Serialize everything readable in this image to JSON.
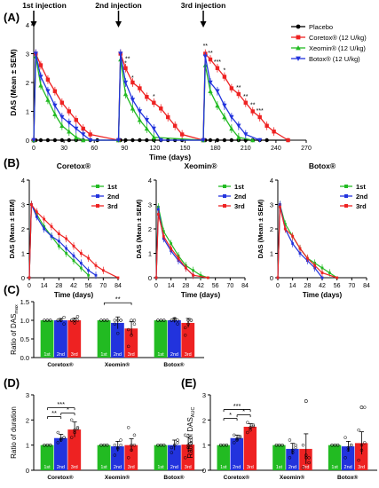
{
  "chart_data": [
    {
      "panel": "(A)",
      "type": "line",
      "xlabel": "Time (days)",
      "ylabel": "DAS (Mean ± SEM)",
      "xlim": [
        0,
        270
      ],
      "ylim": [
        0,
        4
      ],
      "xticks": [
        0,
        30,
        60,
        90,
        120,
        150,
        180,
        210,
        240,
        270
      ],
      "yticks": [
        0,
        1,
        2,
        3,
        4
      ],
      "injections": [
        {
          "label": "1st injection",
          "day": 0
        },
        {
          "label": "2nd injection",
          "day": 84
        },
        {
          "label": "3rd injection",
          "day": 168
        }
      ],
      "legend": [
        {
          "name": "Placebo",
          "color": "#000000",
          "marker": "circle"
        },
        {
          "name": "Coretox® (12 U/kg)",
          "color": "#ee2222",
          "marker": "square"
        },
        {
          "name": "Xeomin® (12 U/kg)",
          "color": "#22bb22",
          "marker": "triangle"
        },
        {
          "name": "Botox® (12 U/kg)",
          "color": "#2233dd",
          "marker": "triangle-down"
        }
      ],
      "series": [
        {
          "name": "Placebo",
          "color": "#000000",
          "marker": "circle",
          "x": [
            0,
            2,
            7,
            14,
            21,
            28,
            35,
            42,
            49,
            56,
            63,
            84,
            86,
            91,
            98,
            105,
            112,
            119,
            126,
            133,
            140,
            147,
            168,
            170,
            175,
            182,
            189,
            196,
            203,
            210,
            217,
            224,
            231,
            252
          ],
          "y": [
            0,
            0,
            0,
            0,
            0,
            0,
            0,
            0,
            0,
            0,
            0,
            0,
            0,
            0,
            0,
            0,
            0,
            0,
            0,
            0,
            0,
            0,
            0,
            0,
            0,
            0,
            0,
            0,
            0,
            0,
            0,
            0,
            0,
            0
          ]
        },
        {
          "name": "Coretox® (12 U/kg)",
          "color": "#ee2222",
          "marker": "square",
          "x": [
            0,
            2,
            7,
            14,
            21,
            28,
            35,
            42,
            49,
            56,
            84,
            86,
            91,
            98,
            105,
            112,
            119,
            126,
            133,
            140,
            147,
            168,
            170,
            175,
            182,
            189,
            196,
            203,
            210,
            217,
            224,
            231,
            238,
            252
          ],
          "y": [
            0,
            3.0,
            2.6,
            2.1,
            1.7,
            1.3,
            1.0,
            0.7,
            0.4,
            0.2,
            0,
            3.0,
            2.5,
            2.0,
            1.8,
            1.5,
            1.3,
            1.1,
            0.8,
            0.5,
            0.2,
            0,
            3.0,
            2.8,
            2.5,
            2.2,
            1.8,
            1.6,
            1.3,
            1.0,
            0.8,
            0.5,
            0.3,
            0
          ]
        },
        {
          "name": "Xeomin® (12 U/kg)",
          "color": "#22bb22",
          "marker": "triangle",
          "x": [
            0,
            2,
            7,
            14,
            21,
            28,
            35,
            42,
            49,
            84,
            86,
            91,
            98,
            105,
            112,
            119,
            168,
            170,
            175,
            182,
            189,
            196,
            203,
            217
          ],
          "y": [
            0,
            2.9,
            1.9,
            1.4,
            0.9,
            0.5,
            0.3,
            0.1,
            0,
            0,
            2.8,
            1.6,
            1.1,
            0.7,
            0.4,
            0.1,
            0,
            2.6,
            1.7,
            1.2,
            0.8,
            0.4,
            0.1,
            0
          ]
        },
        {
          "name": "Botox® (12 U/kg)",
          "color": "#2233dd",
          "marker": "triangle-down",
          "x": [
            0,
            2,
            7,
            14,
            21,
            28,
            35,
            42,
            49,
            56,
            84,
            86,
            91,
            98,
            105,
            112,
            119,
            126,
            168,
            170,
            175,
            182,
            189,
            196,
            203,
            210,
            224
          ],
          "y": [
            0,
            3.0,
            2.2,
            1.7,
            1.2,
            0.8,
            0.6,
            0.4,
            0.2,
            0,
            0,
            3.0,
            2.0,
            1.4,
            1.0,
            0.7,
            0.4,
            0,
            0,
            2.9,
            2.0,
            1.7,
            1.2,
            0.8,
            0.5,
            0.2,
            0
          ]
        }
      ],
      "annotations": [
        {
          "text": "*",
          "x": 91,
          "y": 2.6
        },
        {
          "text": "**",
          "x": 93,
          "y": 2.75
        },
        {
          "text": "*",
          "x": 98,
          "y": 2.1
        },
        {
          "text": "*",
          "x": 119,
          "y": 1.45
        },
        {
          "text": "**",
          "x": 170,
          "y": 3.2
        },
        {
          "text": "**",
          "x": 175,
          "y": 2.95
        },
        {
          "text": "***",
          "x": 182,
          "y": 2.65
        },
        {
          "text": "*",
          "x": 189,
          "y": 2.35
        },
        {
          "text": "**",
          "x": 203,
          "y": 1.75
        },
        {
          "text": "**",
          "x": 210,
          "y": 1.45
        },
        {
          "text": "**",
          "x": 217,
          "y": 1.15
        },
        {
          "text": "***",
          "x": 224,
          "y": 0.95
        }
      ]
    },
    {
      "panel": "(B)",
      "type": "line",
      "xlabel": "Time (days)",
      "ylabel": "DAS (Mean ± SEM)",
      "xlim": [
        0,
        84
      ],
      "ylim": [
        0,
        4
      ],
      "xticks": [
        0,
        14,
        28,
        42,
        56,
        70,
        84
      ],
      "yticks": [
        0,
        1,
        2,
        3,
        4
      ],
      "legend": [
        {
          "name": "1st",
          "color": "#22bb22"
        },
        {
          "name": "2nd",
          "color": "#2233dd"
        },
        {
          "name": "3rd",
          "color": "#ee2222"
        }
      ],
      "subplots": [
        {
          "title": "Coretox®",
          "series": [
            {
              "name": "1st",
              "x": [
                0,
                2,
                7,
                14,
                21,
                28,
                35,
                42,
                49,
                56
              ],
              "y": [
                0,
                3.0,
                2.6,
                2.1,
                1.7,
                1.3,
                1.0,
                0.7,
                0.4,
                0.1
              ]
            },
            {
              "name": "2nd",
              "x": [
                0,
                2,
                7,
                14,
                21,
                28,
                35,
                42,
                49,
                56,
                63
              ],
              "y": [
                0,
                3.0,
                2.5,
                2.0,
                1.7,
                1.5,
                1.2,
                0.9,
                0.6,
                0.3,
                0.1
              ]
            },
            {
              "name": "3rd",
              "x": [
                0,
                2,
                7,
                14,
                21,
                28,
                35,
                42,
                49,
                56,
                63,
                70,
                84
              ],
              "y": [
                0,
                3.0,
                2.7,
                2.4,
                2.1,
                1.8,
                1.6,
                1.3,
                1.0,
                0.8,
                0.5,
                0.3,
                0
              ]
            }
          ]
        },
        {
          "title": "Xeomin®",
          "series": [
            {
              "name": "1st",
              "x": [
                0,
                2,
                7,
                14,
                21,
                28,
                35,
                42,
                49
              ],
              "y": [
                0,
                2.9,
                1.9,
                1.4,
                0.9,
                0.5,
                0.3,
                0.1,
                0
              ]
            },
            {
              "name": "2nd",
              "x": [
                0,
                2,
                7,
                14,
                21,
                28,
                35
              ],
              "y": [
                0,
                2.8,
                1.6,
                1.1,
                0.7,
                0.4,
                0.1
              ]
            },
            {
              "name": "3rd",
              "x": [
                0,
                2,
                7,
                14,
                21,
                28,
                35,
                49
              ],
              "y": [
                0,
                2.6,
                1.7,
                1.2,
                0.8,
                0.4,
                0.1,
                0
              ]
            }
          ]
        },
        {
          "title": "Botox®",
          "series": [
            {
              "name": "1st",
              "x": [
                0,
                2,
                7,
                14,
                21,
                28,
                35,
                42,
                49,
                56
              ],
              "y": [
                0,
                3.0,
                2.2,
                1.7,
                1.2,
                0.8,
                0.6,
                0.4,
                0.2,
                0
              ]
            },
            {
              "name": "2nd",
              "x": [
                0,
                2,
                7,
                14,
                21,
                28,
                35,
                42
              ],
              "y": [
                0,
                3.0,
                2.0,
                1.4,
                1.0,
                0.7,
                0.4,
                0
              ]
            },
            {
              "name": "3rd",
              "x": [
                0,
                2,
                7,
                14,
                21,
                28,
                35,
                42,
                56
              ],
              "y": [
                0,
                2.9,
                2.0,
                1.7,
                1.2,
                0.8,
                0.5,
                0.2,
                0
              ]
            }
          ]
        }
      ]
    },
    {
      "panel": "(C)",
      "type": "bar",
      "ylabel": "Ratio of DAS",
      "ylabel_sub": "max",
      "ylim": [
        0,
        1.5
      ],
      "yticks": [
        "0.0",
        "0.5",
        "1.0",
        "1.5"
      ],
      "groups": [
        "Coretox®",
        "Xeomin®",
        "Botox®"
      ],
      "bar_labels": [
        "1st",
        "2nd",
        "3rd"
      ],
      "colors": [
        "#22bb22",
        "#2233dd",
        "#ee2222"
      ],
      "values": [
        [
          1.0,
          1.0,
          1.0
        ],
        [
          1.0,
          0.93,
          0.78
        ],
        [
          1.0,
          1.0,
          0.93
        ]
      ],
      "errors": [
        [
          0,
          0.05,
          0.06
        ],
        [
          0,
          0.16,
          0.18
        ],
        [
          0,
          0.06,
          0.12
        ]
      ],
      "points": [
        [
          [
            1.0,
            1.0,
            1.0,
            1.0,
            1.0,
            1.0
          ],
          [
            1.0,
            1.0,
            0.9,
            1.0,
            1.0,
            1.08
          ],
          [
            1.0,
            0.93,
            1.0,
            1.0,
            1.0,
            1.1
          ]
        ],
        [
          [
            1.0,
            1.0,
            1.0,
            1.0,
            1.0,
            1.0
          ],
          [
            1.0,
            0.65,
            1.0,
            0.9,
            1.0,
            1.0
          ],
          [
            0.3,
            0.6,
            1.0,
            0.75,
            1.0,
            0.9
          ]
        ],
        [
          [
            1.0,
            1.0,
            1.0,
            1.0,
            1.0,
            1.0
          ],
          [
            1.0,
            1.0,
            0.9,
            1.0,
            1.05,
            1.0
          ],
          [
            0.8,
            0.9,
            1.0,
            0.6,
            1.0,
            1.0
          ]
        ]
      ],
      "significance": [
        {
          "group": 1,
          "from": 0,
          "to": 2,
          "label": "**"
        }
      ]
    },
    {
      "panel": "(D)",
      "type": "bar",
      "ylabel": "Ratio of duration",
      "ylim": [
        0,
        3
      ],
      "yticks": [
        "0",
        "1",
        "2",
        "3"
      ],
      "groups": [
        "Coretox®",
        "Xeomin®",
        "Botox®"
      ],
      "bar_labels": [
        "1st",
        "2nd",
        "3rd"
      ],
      "colors": [
        "#22bb22",
        "#2233dd",
        "#ee2222"
      ],
      "values": [
        [
          1.0,
          1.28,
          1.62
        ],
        [
          1.0,
          0.95,
          1.0
        ],
        [
          1.0,
          1.0,
          1.02
        ]
      ],
      "errors": [
        [
          0,
          0.15,
          0.3
        ],
        [
          0,
          0.2,
          0.25
        ],
        [
          0,
          0.2,
          0.3
        ]
      ],
      "points": [
        [
          [
            1.0,
            1.0,
            1.0,
            1.0,
            1.0,
            1.0
          ],
          [
            1.1,
            1.2,
            1.3,
            1.5,
            1.25,
            1.3
          ],
          [
            1.3,
            1.5,
            1.7,
            2.0,
            1.6,
            1.65
          ]
        ],
        [
          [
            1.0,
            1.0,
            1.0,
            1.0,
            1.0,
            1.0
          ],
          [
            0.6,
            0.9,
            1.2,
            1.0,
            0.85,
            1.0
          ],
          [
            0.5,
            1.0,
            1.4,
            1.7,
            0.8,
            1.0
          ]
        ],
        [
          [
            1.0,
            1.0,
            1.0,
            1.0,
            1.0,
            1.0
          ],
          [
            0.7,
            1.0,
            1.2,
            0.9,
            1.0,
            1.1
          ],
          [
            0.5,
            0.9,
            1.2,
            1.4,
            1.0,
            1.1
          ]
        ]
      ],
      "significance": [
        {
          "group": 0,
          "from": 0,
          "to": 2,
          "label": "***"
        },
        {
          "group": 0,
          "from": 0,
          "to": 1,
          "label": "**"
        },
        {
          "group": 0,
          "from": 1,
          "to": 2,
          "label": "*"
        }
      ]
    },
    {
      "panel": "(E)",
      "type": "bar",
      "ylabel": "Ratio of DAS",
      "ylabel_sub": "AUC",
      "ylim": [
        0,
        3
      ],
      "yticks": [
        "0",
        "1",
        "2",
        "3"
      ],
      "groups": [
        "Coretox®",
        "Xeomin®",
        "Botox®"
      ],
      "bar_labels": [
        "1st",
        "2nd",
        "3rd"
      ],
      "colors": [
        "#22bb22",
        "#2233dd",
        "#ee2222"
      ],
      "values": [
        [
          1.0,
          1.28,
          1.73
        ],
        [
          1.0,
          0.85,
          0.85
        ],
        [
          1.0,
          0.95,
          1.08
        ]
      ],
      "errors": [
        [
          0,
          0.12,
          0.12
        ],
        [
          0,
          0.22,
          0.6
        ],
        [
          0,
          0.2,
          0.45
        ]
      ],
      "points": [
        [
          [
            1.0,
            1.0,
            1.0,
            1.0,
            1.0,
            1.0
          ],
          [
            1.1,
            1.2,
            1.3,
            1.4,
            1.25,
            1.35
          ],
          [
            1.5,
            1.6,
            1.8,
            1.9,
            1.7,
            1.75
          ]
        ],
        [
          [
            1.0,
            1.0,
            1.0,
            1.0,
            1.0,
            1.0
          ],
          [
            0.5,
            0.8,
            1.0,
            1.2,
            0.7,
            0.9
          ],
          [
            0.1,
            0.5,
            0.3,
            1.0,
            0.6,
            0.5
          ]
        ],
        [
          [
            1.0,
            1.0,
            1.0,
            1.0,
            1.0,
            1.0
          ],
          [
            0.5,
            0.8,
            1.0,
            1.3,
            0.9,
            1.0
          ],
          [
            0.4,
            0.8,
            1.1,
            1.6,
            1.0,
            2.5
          ]
        ]
      ],
      "outliers": [
        {
          "group": 1,
          "bar": 2,
          "y": 2.75
        },
        {
          "group": 2,
          "bar": 2,
          "y": 2.5
        }
      ],
      "significance": [
        {
          "group": 0,
          "from": 0,
          "to": 2,
          "label": "***"
        },
        {
          "group": 0,
          "from": 0,
          "to": 1,
          "label": "*"
        },
        {
          "group": 0,
          "from": 1,
          "to": 2,
          "label": "*"
        }
      ]
    }
  ]
}
